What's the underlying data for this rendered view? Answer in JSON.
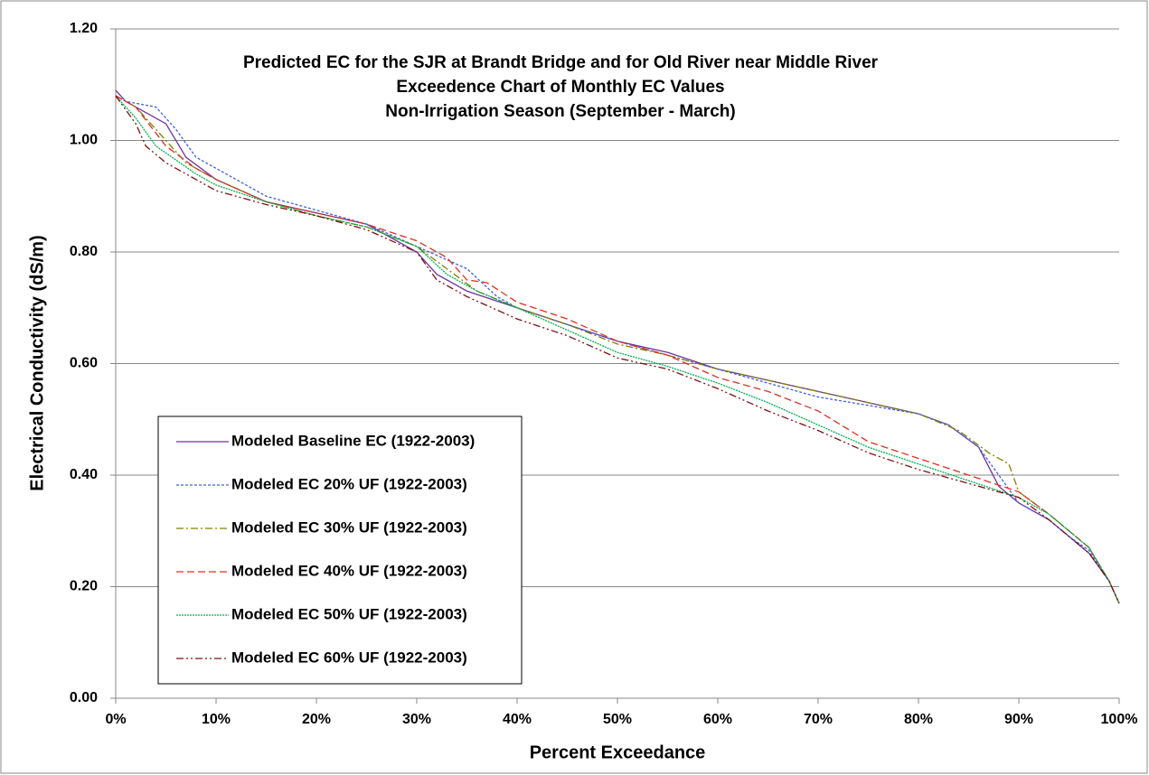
{
  "chart_data": {
    "type": "line",
    "title": [
      "Predicted EC for the SJR at Brandt Bridge and for Old River near Middle River",
      "Exceedence Chart of Monthly EC Values",
      "Non-Irrigation Season (September - March)"
    ],
    "x_label": "Percent Exceedance",
    "y_label": "Electrical Conductivity (dS/m)",
    "xlim": [
      0,
      100
    ],
    "xticks": [
      {
        "value": 0,
        "label": "0%"
      },
      {
        "value": 10,
        "label": "10%"
      },
      {
        "value": 20,
        "label": "20%"
      },
      {
        "value": 30,
        "label": "30%"
      },
      {
        "value": 40,
        "label": "40%"
      },
      {
        "value": 50,
        "label": "50%"
      },
      {
        "value": 60,
        "label": "60%"
      },
      {
        "value": 70,
        "label": "70%"
      },
      {
        "value": 80,
        "label": "80%"
      },
      {
        "value": 90,
        "label": "90%"
      },
      {
        "value": 100,
        "label": "100%"
      }
    ],
    "ylim": [
      0,
      1.2
    ],
    "yticks": [
      {
        "value": 0,
        "label": "0.00"
      },
      {
        "value": 0.2,
        "label": "0.20"
      },
      {
        "value": 0.4,
        "label": "0.40"
      },
      {
        "value": 0.6,
        "label": "0.60"
      },
      {
        "value": 0.8,
        "label": "0.80"
      },
      {
        "value": 1.0,
        "label": "1.00"
      },
      {
        "value": 1.2,
        "label": "1.20"
      }
    ],
    "grid": true,
    "legend": "lower left",
    "series": [
      {
        "name": "Modeled Baseline EC (1922-2003)",
        "color": "#7030a0",
        "dash": "none",
        "x": [
          0,
          1,
          5,
          7,
          10,
          15,
          20,
          25,
          30,
          32,
          35,
          40,
          45,
          50,
          55,
          60,
          65,
          70,
          75,
          80,
          83,
          86,
          88,
          90,
          93,
          95,
          97,
          99,
          100
        ],
        "values": [
          1.09,
          1.07,
          1.03,
          0.97,
          0.93,
          0.89,
          0.87,
          0.85,
          0.8,
          0.76,
          0.73,
          0.7,
          0.67,
          0.64,
          0.62,
          0.59,
          0.57,
          0.55,
          0.53,
          0.51,
          0.49,
          0.45,
          0.38,
          0.35,
          0.32,
          0.29,
          0.26,
          0.21,
          0.17
        ]
      },
      {
        "name": "Modeled EC 20% UF (1922-2003)",
        "color": "#4060e0",
        "dash": "3,2",
        "x": [
          0,
          1,
          4,
          6,
          8,
          10,
          15,
          20,
          25,
          30,
          35,
          38,
          40,
          45,
          50,
          55,
          60,
          65,
          70,
          75,
          80,
          83,
          86,
          88,
          90,
          93,
          95,
          97,
          99,
          100
        ],
        "values": [
          1.08,
          1.07,
          1.06,
          1.02,
          0.97,
          0.95,
          0.9,
          0.875,
          0.85,
          0.81,
          0.77,
          0.72,
          0.7,
          0.67,
          0.64,
          0.615,
          0.59,
          0.565,
          0.54,
          0.525,
          0.51,
          0.49,
          0.45,
          0.4,
          0.35,
          0.32,
          0.29,
          0.265,
          0.21,
          0.17
        ]
      },
      {
        "name": "Modeled EC 30% UF (1922-2003)",
        "color": "#808000",
        "dash": "8,3,2,3",
        "x": [
          0,
          2,
          5,
          7,
          10,
          15,
          20,
          25,
          30,
          33,
          36,
          40,
          45,
          50,
          55,
          60,
          65,
          70,
          75,
          80,
          84,
          87,
          89,
          90,
          93,
          95,
          97,
          99,
          100
        ],
        "values": [
          1.08,
          1.06,
          1.0,
          0.96,
          0.93,
          0.89,
          0.865,
          0.845,
          0.81,
          0.77,
          0.73,
          0.7,
          0.67,
          0.635,
          0.615,
          0.59,
          0.57,
          0.55,
          0.53,
          0.51,
          0.48,
          0.44,
          0.42,
          0.37,
          0.33,
          0.3,
          0.27,
          0.21,
          0.17
        ]
      },
      {
        "name": "Modeled EC 40% UF (1922-2003)",
        "color": "#e03020",
        "dash": "8,4",
        "x": [
          0,
          2,
          5,
          8,
          10,
          15,
          20,
          25,
          30,
          33,
          35,
          37,
          40,
          45,
          50,
          55,
          60,
          65,
          70,
          75,
          80,
          85,
          90,
          93,
          95,
          97,
          99,
          100
        ],
        "values": [
          1.08,
          1.06,
          0.99,
          0.95,
          0.93,
          0.89,
          0.87,
          0.85,
          0.82,
          0.79,
          0.75,
          0.745,
          0.71,
          0.68,
          0.64,
          0.615,
          0.575,
          0.55,
          0.515,
          0.46,
          0.43,
          0.4,
          0.37,
          0.33,
          0.3,
          0.27,
          0.21,
          0.17
        ]
      },
      {
        "name": "Modeled EC 50% UF (1922-2003)",
        "color": "#00b050",
        "dash": "2,1",
        "x": [
          0,
          2,
          4,
          8,
          10,
          15,
          20,
          25,
          30,
          33,
          36,
          40,
          45,
          50,
          55,
          60,
          65,
          70,
          75,
          80,
          85,
          90,
          93,
          95,
          97,
          99,
          100
        ],
        "values": [
          1.08,
          1.04,
          0.99,
          0.94,
          0.92,
          0.89,
          0.865,
          0.845,
          0.81,
          0.76,
          0.73,
          0.7,
          0.66,
          0.62,
          0.595,
          0.565,
          0.53,
          0.49,
          0.45,
          0.42,
          0.39,
          0.36,
          0.33,
          0.3,
          0.27,
          0.21,
          0.17
        ]
      },
      {
        "name": "Modeled EC 60% UF (1922-2003)",
        "color": "#801010",
        "dash": "8,3,2,3,2,3",
        "x": [
          0,
          2,
          3,
          5,
          8,
          10,
          15,
          20,
          25,
          30,
          32,
          35,
          40,
          45,
          50,
          55,
          60,
          65,
          70,
          75,
          80,
          85,
          90,
          93,
          95,
          97,
          99,
          100
        ],
        "values": [
          1.08,
          1.03,
          0.99,
          0.96,
          0.93,
          0.91,
          0.885,
          0.865,
          0.84,
          0.8,
          0.75,
          0.72,
          0.68,
          0.65,
          0.61,
          0.59,
          0.555,
          0.515,
          0.48,
          0.44,
          0.41,
          0.385,
          0.36,
          0.32,
          0.29,
          0.26,
          0.21,
          0.17
        ]
      }
    ]
  }
}
